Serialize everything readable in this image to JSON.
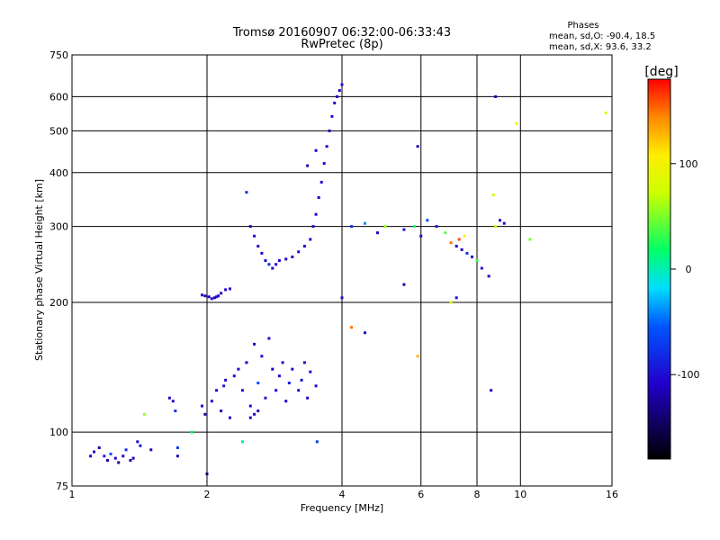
{
  "chart_data": {
    "type": "scatter",
    "title": "Tromsø 20160907 06:32:00-06:33:43",
    "subtitle": "RwPretec (8p)",
    "xlabel": "Frequency [MHz]",
    "ylabel": "Stationary phase Virtual Height [km]",
    "xscale": "log",
    "yscale": "log",
    "xlim": [
      1,
      16
    ],
    "ylim": [
      75,
      750
    ],
    "xticks": [
      1,
      2,
      4,
      6,
      8,
      10,
      16
    ],
    "yticks": [
      75,
      100,
      200,
      300,
      400,
      500,
      600,
      750
    ],
    "grid": true,
    "stats": {
      "heading": "Phases",
      "line_o": "mean, sd,O: -90.4, 18.5",
      "line_x": "mean, sd,X:  93.6, 33.2"
    },
    "colorbar": {
      "label": "[deg]",
      "min": -180,
      "max": 180,
      "ticks": [
        100,
        0,
        -100
      ]
    },
    "series": [
      {
        "points": [
          [
            1.1,
            88,
            -110
          ],
          [
            1.12,
            90,
            -100
          ],
          [
            1.15,
            92,
            -120
          ],
          [
            1.18,
            88,
            -90
          ],
          [
            1.2,
            86,
            -115
          ],
          [
            1.22,
            89,
            -60
          ],
          [
            1.25,
            87,
            -105
          ],
          [
            1.27,
            85,
            -125
          ],
          [
            1.3,
            88,
            -110
          ],
          [
            1.32,
            91,
            -80
          ],
          [
            1.35,
            86,
            -118
          ],
          [
            1.37,
            87,
            -112
          ],
          [
            1.4,
            95,
            -100
          ],
          [
            1.42,
            93,
            -95
          ],
          [
            1.45,
            110,
            60
          ],
          [
            1.5,
            91,
            -105
          ],
          [
            1.65,
            120,
            -110
          ],
          [
            1.68,
            118,
            -100
          ],
          [
            1.7,
            112,
            -80
          ],
          [
            1.72,
            92,
            -70
          ],
          [
            1.72,
            88,
            -115
          ],
          [
            1.85,
            100,
            20
          ],
          [
            1.95,
            115,
            -108
          ],
          [
            1.98,
            110,
            -112
          ],
          [
            2.0,
            80,
            -140
          ],
          [
            1.95,
            208,
            -110
          ],
          [
            1.98,
            207,
            -105
          ],
          [
            2.02,
            206,
            -115
          ],
          [
            2.05,
            204,
            -108
          ],
          [
            2.08,
            205,
            -112
          ],
          [
            2.1,
            206,
            -100
          ],
          [
            2.12,
            207,
            -110
          ],
          [
            2.15,
            210,
            -105
          ],
          [
            2.2,
            214,
            -108
          ],
          [
            2.25,
            215,
            -95
          ],
          [
            2.05,
            118,
            -110
          ],
          [
            2.1,
            125,
            -100
          ],
          [
            2.15,
            112,
            -115
          ],
          [
            2.18,
            128,
            -90
          ],
          [
            2.2,
            132,
            -105
          ],
          [
            2.25,
            108,
            -112
          ],
          [
            2.3,
            135,
            -100
          ],
          [
            2.35,
            140,
            -108
          ],
          [
            2.4,
            125,
            -95
          ],
          [
            2.45,
            145,
            -110
          ],
          [
            2.5,
            115,
            -100
          ],
          [
            2.55,
            160,
            -105
          ],
          [
            2.6,
            130,
            -60
          ],
          [
            2.65,
            150,
            -110
          ],
          [
            2.7,
            120,
            -100
          ],
          [
            2.75,
            165,
            -105
          ],
          [
            2.8,
            140,
            -112
          ],
          [
            2.85,
            125,
            -98
          ],
          [
            2.9,
            135,
            -108
          ],
          [
            2.95,
            145,
            -102
          ],
          [
            3.0,
            118,
            -110
          ],
          [
            3.05,
            130,
            -95
          ],
          [
            3.1,
            140,
            -105
          ],
          [
            3.2,
            125,
            -112
          ],
          [
            3.25,
            132,
            -100
          ],
          [
            3.3,
            145,
            -108
          ],
          [
            3.35,
            120,
            -103
          ],
          [
            3.4,
            138,
            -110
          ],
          [
            3.5,
            128,
            -100
          ],
          [
            3.52,
            95,
            -70
          ],
          [
            2.5,
            108,
            -110
          ],
          [
            2.55,
            110,
            -105
          ],
          [
            2.6,
            112,
            -115
          ],
          [
            2.4,
            95,
            10
          ],
          [
            2.45,
            360,
            -80
          ],
          [
            2.5,
            300,
            -110
          ],
          [
            2.55,
            285,
            -100
          ],
          [
            2.6,
            270,
            -105
          ],
          [
            2.65,
            260,
            -110
          ],
          [
            2.7,
            250,
            -100
          ],
          [
            2.75,
            245,
            -80
          ],
          [
            2.8,
            240,
            -110
          ],
          [
            2.85,
            245,
            -100
          ],
          [
            2.9,
            250,
            -105
          ],
          [
            3.0,
            252,
            -110
          ],
          [
            3.1,
            255,
            -108
          ],
          [
            3.2,
            262,
            -100
          ],
          [
            3.3,
            270,
            -105
          ],
          [
            3.4,
            280,
            -110
          ],
          [
            3.45,
            300,
            -100
          ],
          [
            3.5,
            320,
            -105
          ],
          [
            3.55,
            350,
            -110
          ],
          [
            3.6,
            380,
            -100
          ],
          [
            3.65,
            420,
            -108
          ],
          [
            3.7,
            460,
            -105
          ],
          [
            3.75,
            500,
            -110
          ],
          [
            3.8,
            540,
            -100
          ],
          [
            3.85,
            580,
            -105
          ],
          [
            3.9,
            600,
            -110
          ],
          [
            3.95,
            620,
            -108
          ],
          [
            4.0,
            640,
            -100
          ],
          [
            3.35,
            415,
            -120
          ],
          [
            3.5,
            450,
            -110
          ],
          [
            4.2,
            300,
            -80
          ],
          [
            4.5,
            305,
            -40
          ],
          [
            4.8,
            290,
            -110
          ],
          [
            5.0,
            300,
            60
          ],
          [
            5.5,
            295,
            -100
          ],
          [
            5.8,
            300,
            20
          ],
          [
            6.0,
            285,
            -110
          ],
          [
            6.2,
            310,
            -60
          ],
          [
            6.5,
            300,
            -100
          ],
          [
            6.8,
            290,
            40
          ],
          [
            7.0,
            275,
            150
          ],
          [
            7.2,
            270,
            -105
          ],
          [
            7.3,
            280,
            160
          ],
          [
            7.4,
            265,
            -110
          ],
          [
            7.5,
            285,
            100
          ],
          [
            7.6,
            260,
            -80
          ],
          [
            7.8,
            255,
            -110
          ],
          [
            8.0,
            250,
            30
          ],
          [
            8.2,
            240,
            -100
          ],
          [
            8.5,
            230,
            -110
          ],
          [
            8.8,
            300,
            70
          ],
          [
            9.0,
            310,
            -120
          ],
          [
            9.2,
            305,
            -105
          ],
          [
            10.5,
            280,
            50
          ],
          [
            5.9,
            460,
            -110
          ],
          [
            5.5,
            220,
            -120
          ],
          [
            5.9,
            150,
            130
          ],
          [
            7.0,
            200,
            90
          ],
          [
            7.2,
            205,
            -100
          ],
          [
            8.6,
            125,
            -110
          ],
          [
            4.2,
            175,
            150
          ],
          [
            4.5,
            170,
            -110
          ],
          [
            4.0,
            205,
            -100
          ],
          [
            8.8,
            600,
            -120
          ],
          [
            9.8,
            520,
            100
          ],
          [
            15.5,
            550,
            90
          ],
          [
            8.7,
            355,
            80
          ]
        ]
      }
    ]
  }
}
